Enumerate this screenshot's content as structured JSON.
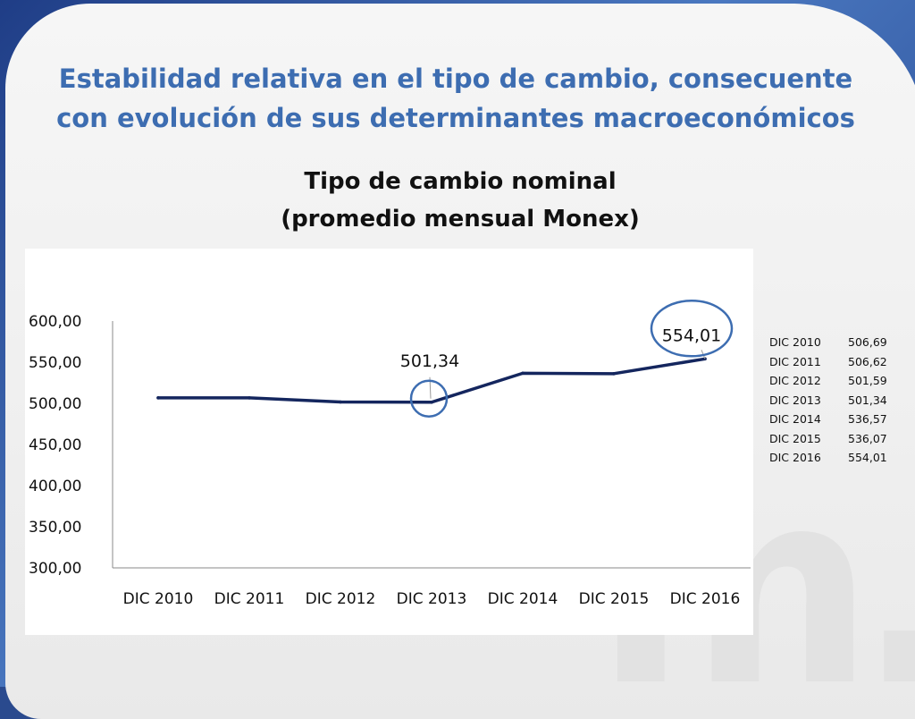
{
  "slide": {
    "title_line1": "Estabilidad relativa en el tipo de cambio, consecuente",
    "title_line2": "con evolución de sus determinantes macroeconómicos"
  },
  "chart_data": {
    "type": "line",
    "title_line1": "Tipo de cambio nominal",
    "title_line2": "(promedio mensual Monex)",
    "categories": [
      "DIC 2010",
      "DIC 2011",
      "DIC 2012",
      "DIC 2013",
      "DIC 2014",
      "DIC 2015",
      "DIC 2016"
    ],
    "series": [
      {
        "values": [
          506.69,
          506.62,
          501.59,
          501.34,
          536.57,
          536.07,
          554.01
        ]
      }
    ],
    "ylim": [
      300,
      600
    ],
    "y_ticks": [
      "600,00",
      "550,00",
      "500,00",
      "450,00",
      "400,00",
      "350,00",
      "300,00"
    ],
    "annotations": [
      {
        "label": "501,34",
        "category": "DIC 2013"
      },
      {
        "label": "554,01",
        "category": "DIC 2016"
      }
    ],
    "line_color": "#14265e",
    "highlight_color": "#3d6db1",
    "grid": false,
    "legend": "none"
  },
  "table": {
    "rows": [
      {
        "period": "DIC 2010",
        "value": "506,69"
      },
      {
        "period": "DIC 2011",
        "value": "506,62"
      },
      {
        "period": "DIC 2012",
        "value": "501,59"
      },
      {
        "period": "DIC 2013",
        "value": "501,34"
      },
      {
        "period": "DIC 2014",
        "value": "536,57"
      },
      {
        "period": "DIC 2015",
        "value": "536,07"
      },
      {
        "period": "DIC 2016",
        "value": "554,01"
      }
    ]
  }
}
